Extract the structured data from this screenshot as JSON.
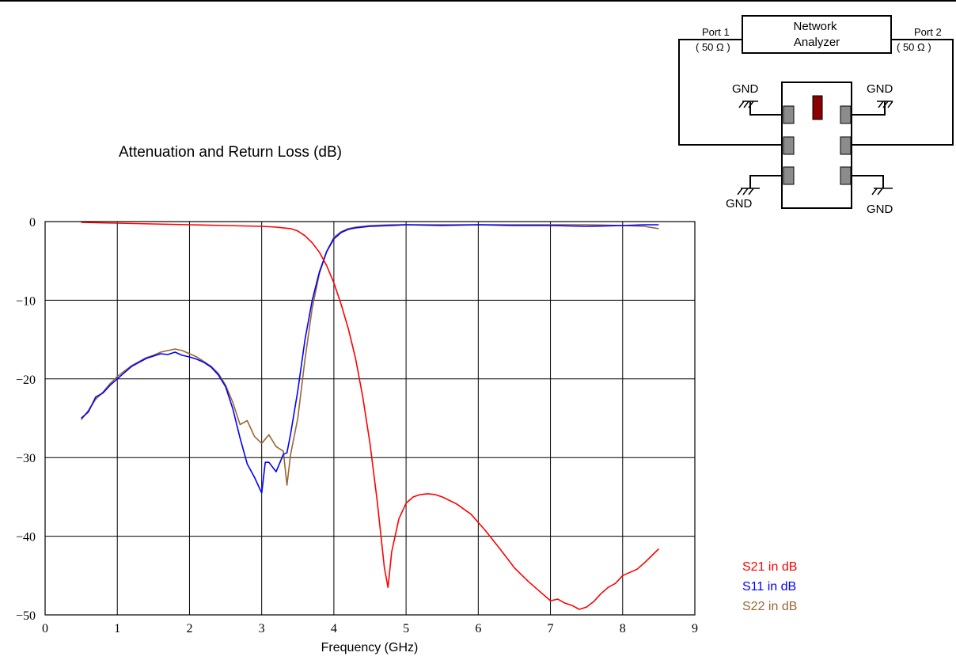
{
  "header": {
    "chart_title": "Attenuation and Return Loss (dB)"
  },
  "diagram": {
    "analyzer_label_line1": "Network",
    "analyzer_label_line2": "Analyzer",
    "port1_label": "Port 1",
    "port1_impedance": "( 50 Ω )",
    "port2_label": "Port 2",
    "port2_impedance": "( 50 Ω )",
    "gnd_label": "GND",
    "colors": {
      "marker": "#8b0000",
      "pad": "#8c8c8c"
    }
  },
  "chart_data": {
    "type": "line",
    "title": "Attenuation and Return Loss (dB)",
    "xlabel": "Frequency (GHz)",
    "ylabel": "",
    "xlim": [
      0,
      9
    ],
    "ylim": [
      -50,
      0
    ],
    "x_ticks": [
      "0",
      "1",
      "2",
      "3",
      "4",
      "5",
      "6",
      "7",
      "8",
      "9"
    ],
    "y_ticks": [
      "0",
      "−10",
      "−20",
      "−30",
      "−40",
      "−50"
    ],
    "grid": true,
    "legend_position": "bottom-right",
    "series": [
      {
        "name": "S21 in dB",
        "color": "#ff0000",
        "x": [
          0.5,
          1.0,
          1.5,
          2.0,
          2.5,
          3.0,
          3.2,
          3.4,
          3.5,
          3.6,
          3.7,
          3.8,
          3.9,
          4.0,
          4.1,
          4.2,
          4.3,
          4.4,
          4.5,
          4.6,
          4.7,
          4.75,
          4.8,
          4.9,
          5.0,
          5.1,
          5.2,
          5.3,
          5.4,
          5.5,
          5.7,
          5.9,
          6.1,
          6.3,
          6.5,
          6.7,
          6.9,
          7.0,
          7.1,
          7.2,
          7.3,
          7.4,
          7.5,
          7.6,
          7.7,
          7.8,
          7.9,
          8.0,
          8.1,
          8.2,
          8.3,
          8.4,
          8.5
        ],
        "y": [
          -0.1,
          -0.2,
          -0.3,
          -0.4,
          -0.5,
          -0.6,
          -0.7,
          -0.9,
          -1.2,
          -1.8,
          -2.7,
          -3.9,
          -5.6,
          -7.8,
          -10.5,
          -13.6,
          -17.4,
          -22.3,
          -28.2,
          -35.5,
          -44.0,
          -46.5,
          -42.0,
          -37.8,
          -35.8,
          -35.0,
          -34.7,
          -34.6,
          -34.7,
          -35.0,
          -35.9,
          -37.2,
          -39.3,
          -41.6,
          -44.0,
          -45.8,
          -47.4,
          -48.2,
          -48.0,
          -48.5,
          -48.8,
          -49.3,
          -49.0,
          -48.3,
          -47.3,
          -46.5,
          -46.0,
          -45.0,
          -44.6,
          -44.2,
          -43.4,
          -42.5,
          -41.6
        ]
      },
      {
        "name": "S11 in dB",
        "color": "#0000ff",
        "x": [
          0.5,
          0.6,
          0.7,
          0.8,
          0.9,
          1.0,
          1.1,
          1.2,
          1.3,
          1.4,
          1.5,
          1.6,
          1.7,
          1.8,
          1.9,
          2.0,
          2.1,
          2.2,
          2.3,
          2.4,
          2.5,
          2.6,
          2.7,
          2.8,
          2.9,
          3.0,
          3.05,
          3.1,
          3.2,
          3.3,
          3.35,
          3.4,
          3.5,
          3.6,
          3.7,
          3.8,
          3.9,
          4.0,
          4.1,
          4.2,
          4.3,
          4.5,
          4.8,
          5.0,
          5.5,
          6.0,
          6.5,
          7.0,
          7.5,
          8.0,
          8.3,
          8.5
        ],
        "y": [
          -25.0,
          -24.2,
          -22.3,
          -21.8,
          -20.8,
          -20.0,
          -19.2,
          -18.4,
          -17.9,
          -17.4,
          -17.1,
          -16.8,
          -16.9,
          -16.6,
          -17.0,
          -17.2,
          -17.5,
          -17.9,
          -18.5,
          -19.5,
          -21.0,
          -23.8,
          -27.5,
          -30.8,
          -32.5,
          -34.5,
          -30.6,
          -30.6,
          -31.8,
          -29.6,
          -29.4,
          -27.0,
          -21.5,
          -15.0,
          -10.0,
          -6.4,
          -3.8,
          -2.2,
          -1.4,
          -1.0,
          -0.8,
          -0.6,
          -0.5,
          -0.4,
          -0.5,
          -0.4,
          -0.5,
          -0.5,
          -0.6,
          -0.5,
          -0.4,
          -0.4
        ]
      },
      {
        "name": "S22 in dB",
        "color": "#996633",
        "x": [
          0.5,
          0.6,
          0.7,
          0.8,
          0.9,
          1.0,
          1.1,
          1.2,
          1.3,
          1.4,
          1.5,
          1.6,
          1.7,
          1.8,
          1.9,
          2.0,
          2.1,
          2.2,
          2.3,
          2.4,
          2.5,
          2.6,
          2.7,
          2.8,
          2.9,
          3.0,
          3.1,
          3.2,
          3.3,
          3.35,
          3.4,
          3.5,
          3.6,
          3.7,
          3.8,
          3.9,
          4.0,
          4.1,
          4.2,
          4.3,
          4.5,
          4.8,
          5.0,
          5.5,
          6.0,
          6.5,
          7.0,
          7.5,
          8.0,
          8.3,
          8.5
        ],
        "y": [
          -25.2,
          -24.0,
          -22.6,
          -21.7,
          -20.6,
          -19.7,
          -19.0,
          -18.3,
          -17.8,
          -17.3,
          -17.0,
          -16.6,
          -16.4,
          -16.2,
          -16.4,
          -16.8,
          -17.2,
          -17.8,
          -18.4,
          -19.3,
          -20.8,
          -23.0,
          -25.8,
          -25.3,
          -27.3,
          -28.2,
          -27.1,
          -28.6,
          -29.2,
          -33.5,
          -29.6,
          -25.0,
          -17.5,
          -11.0,
          -6.6,
          -3.8,
          -2.0,
          -1.3,
          -0.9,
          -0.7,
          -0.5,
          -0.4,
          -0.4,
          -0.4,
          -0.4,
          -0.4,
          -0.4,
          -0.4,
          -0.5,
          -0.6,
          -0.9
        ]
      }
    ]
  }
}
